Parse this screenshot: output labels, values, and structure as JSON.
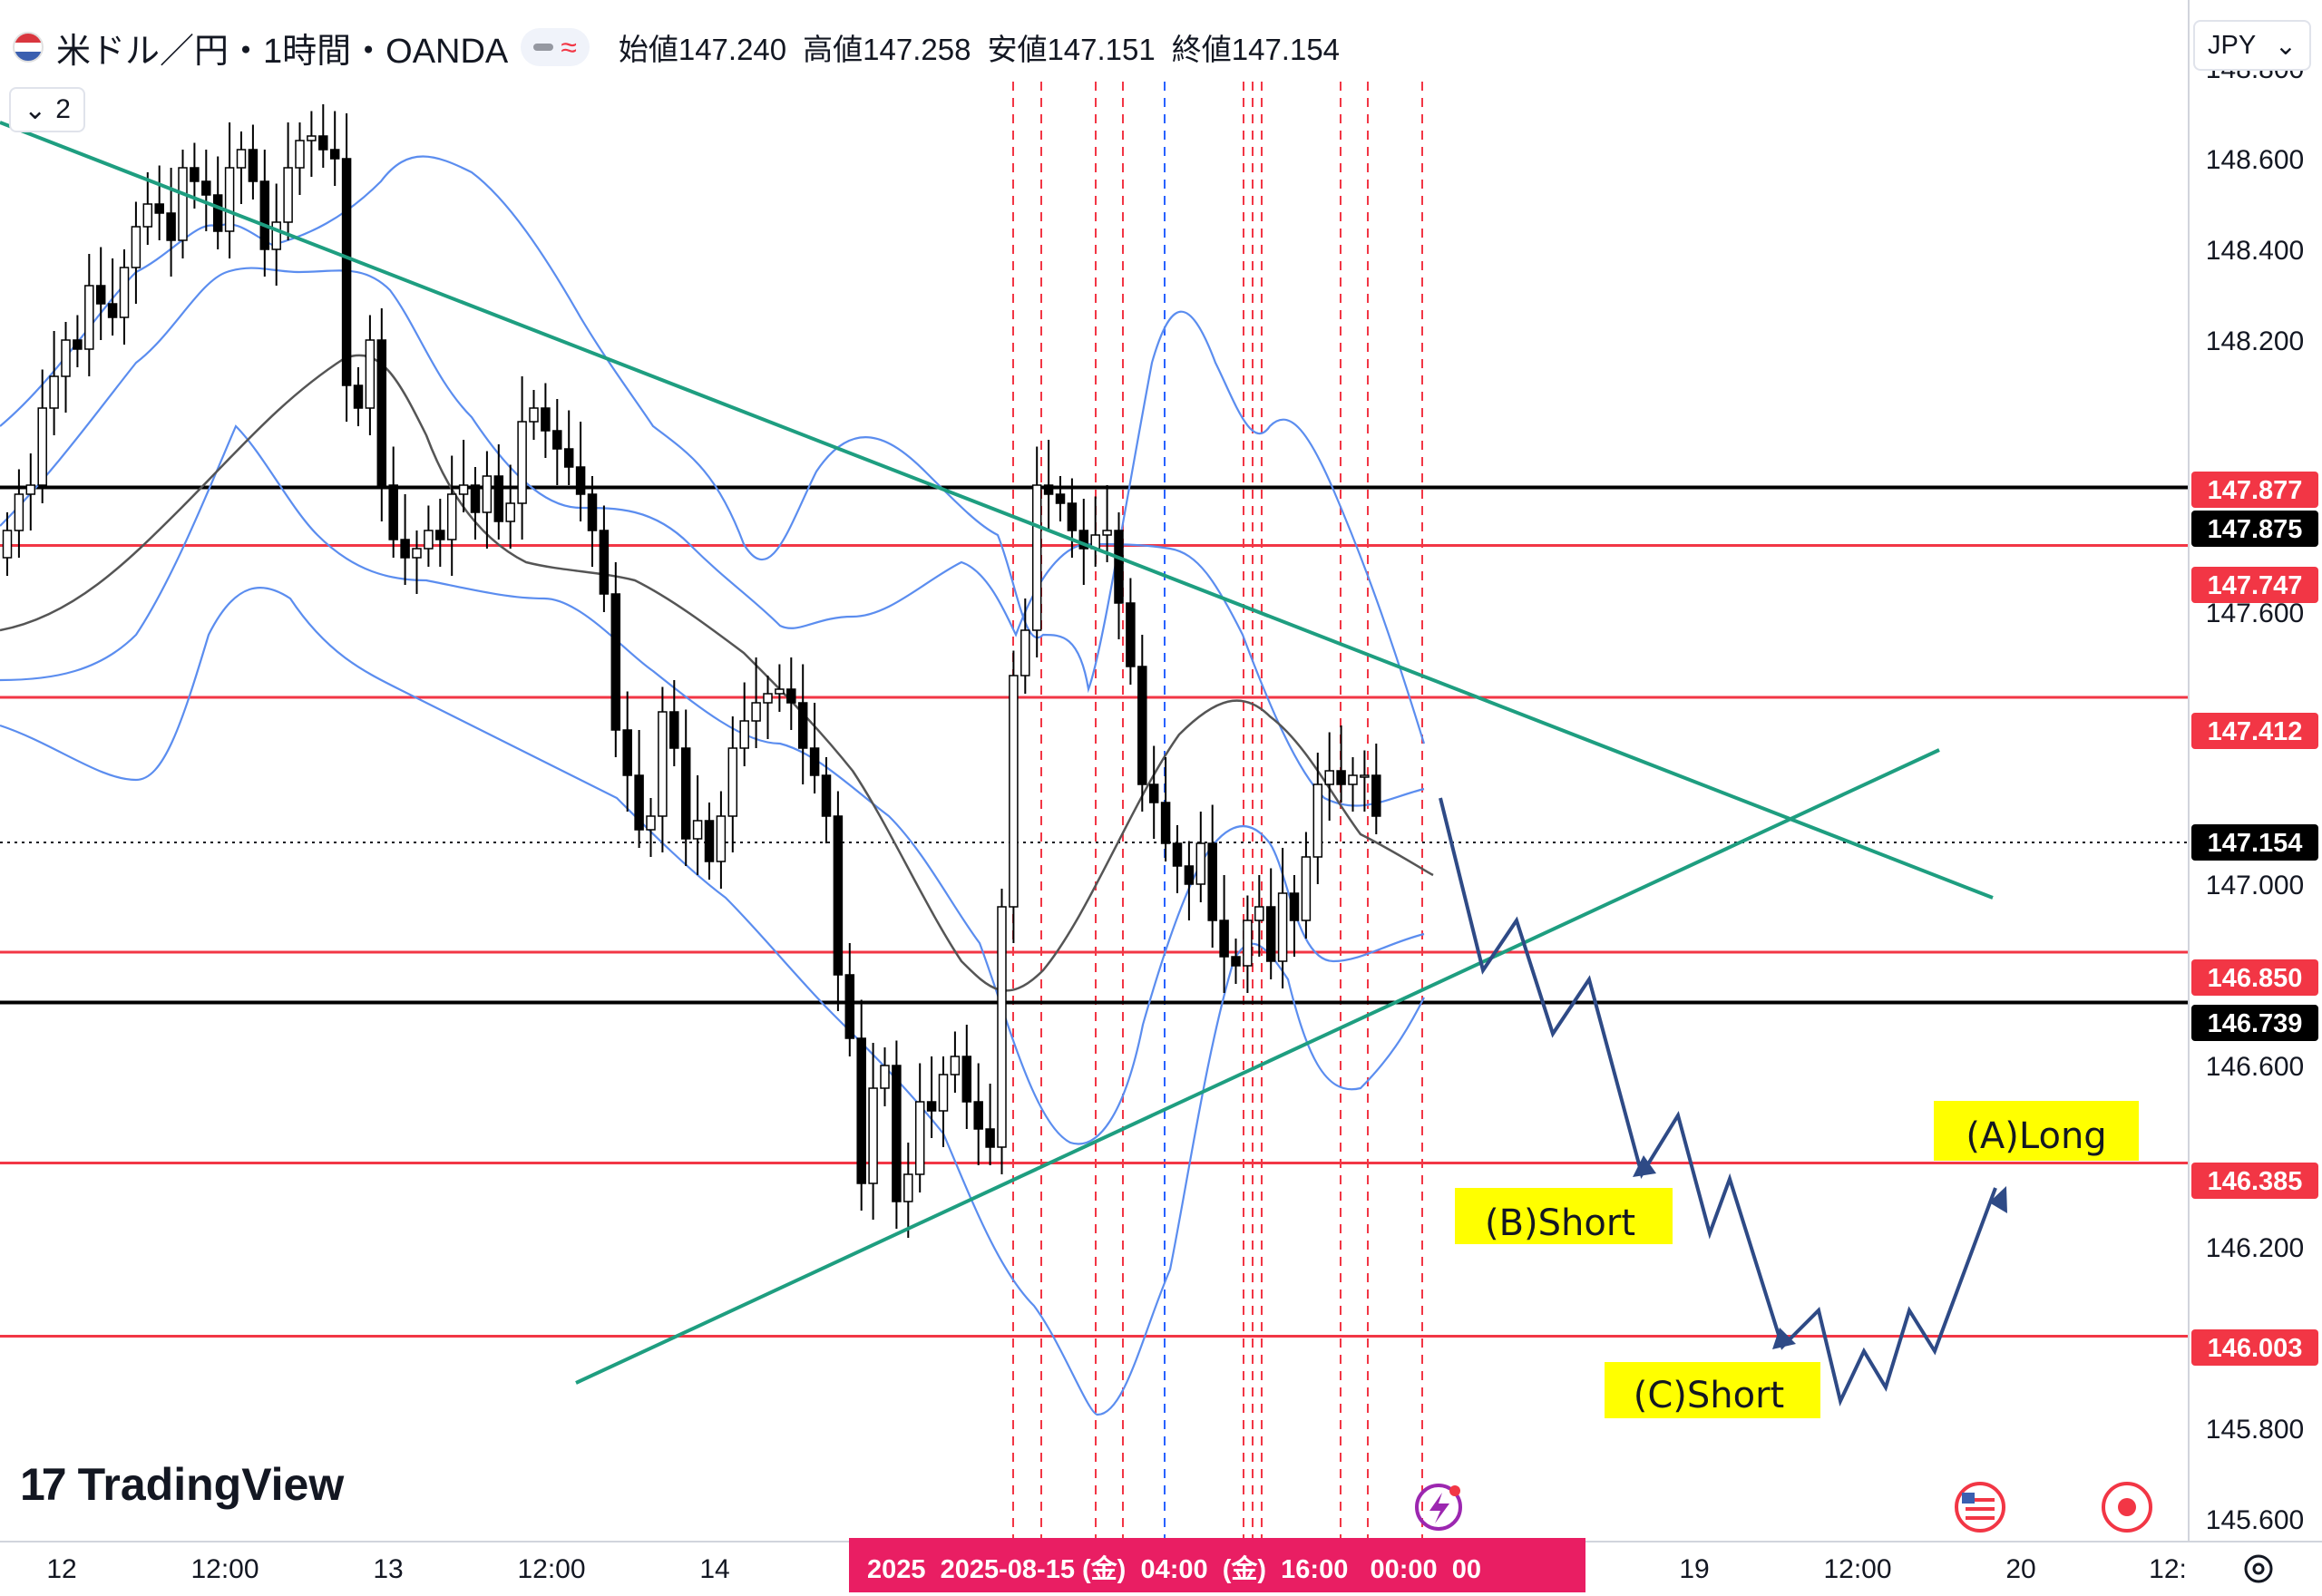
{
  "header": {
    "symbol": "米ドル／円・1時間・OANDA",
    "ohlc": [
      {
        "label": "始値",
        "value": "147.240"
      },
      {
        "label": "高値",
        "value": "147.258"
      },
      {
        "label": "安値",
        "value": "147.151"
      },
      {
        "label": "終値",
        "value": "147.154"
      }
    ],
    "collapse_label": "2",
    "currency": "JPY"
  },
  "brand": "TradingView",
  "colors": {
    "bull": "#ffffff",
    "bear": "#000000",
    "bollinger": "#5b8def",
    "sma": "#555555",
    "trendline": "#1e9e80",
    "level_red": "#f23645",
    "level_black": "#000000",
    "projection": "#2e4a86",
    "label_yellow": "#ffff00",
    "vline_red": "#f23645",
    "vline_blue": "#2962ff"
  },
  "chart_data": {
    "type": "candlestick",
    "symbol": "USDJPY",
    "timeframe": "1h",
    "y_axis": {
      "min": 145.55,
      "max": 148.95,
      "ticks": [
        "148.800",
        "148.600",
        "148.400",
        "148.200",
        "147.600",
        "147.000",
        "146.600",
        "146.200",
        "145.800",
        "145.600"
      ]
    },
    "x_axis": {
      "ticks": [
        "12",
        "12:00",
        "13",
        "12:00",
        "14",
        "19",
        "12:00",
        "20",
        "12:"
      ],
      "cursor_label": "2025  2025-08-15 (金)  04:00  (金)  16:00   00:00  00"
    },
    "price_labels": [
      {
        "value": "147.877",
        "style": "red"
      },
      {
        "value": "147.875",
        "style": "black"
      },
      {
        "value": "147.747",
        "style": "red"
      },
      {
        "value": "147.412",
        "style": "red"
      },
      {
        "value": "147.154",
        "style": "black"
      },
      {
        "value": "146.850",
        "style": "red"
      },
      {
        "value": "146.739",
        "style": "black"
      },
      {
        "value": "146.385",
        "style": "red"
      },
      {
        "value": "146.003",
        "style": "red"
      }
    ],
    "horizontal_levels": [
      {
        "price": 147.875,
        "color": "black"
      },
      {
        "price": 147.747,
        "color": "red"
      },
      {
        "price": 147.412,
        "color": "red"
      },
      {
        "price": 146.85,
        "color": "red"
      },
      {
        "price": 146.739,
        "color": "black"
      },
      {
        "price": 146.385,
        "color": "red"
      },
      {
        "price": 146.003,
        "color": "red"
      }
    ],
    "current_price": 147.154,
    "candles_close": [
      147.78,
      147.86,
      147.88,
      148.05,
      148.12,
      148.2,
      148.18,
      148.32,
      148.28,
      148.25,
      148.36,
      148.45,
      148.5,
      148.48,
      148.42,
      148.58,
      148.55,
      148.52,
      148.44,
      148.58,
      148.62,
      148.55,
      148.4,
      148.46,
      148.58,
      148.64,
      148.65,
      148.62,
      148.6,
      148.1,
      148.05,
      148.2,
      147.88,
      147.76,
      147.72,
      147.74,
      147.78,
      147.76,
      147.86,
      147.88,
      147.82,
      147.9,
      147.8,
      147.84,
      148.02,
      148.05,
      148.0,
      147.96,
      147.92,
      147.86,
      147.78,
      147.64,
      147.34,
      147.24,
      147.12,
      147.15,
      147.38,
      147.3,
      147.1,
      147.14,
      147.05,
      147.15,
      147.3,
      147.36,
      147.4,
      147.42,
      147.43,
      147.4,
      147.3,
      147.24,
      147.15,
      146.8,
      146.66,
      146.34,
      146.55,
      146.6,
      146.3,
      146.36,
      146.52,
      146.5,
      146.58,
      146.62,
      146.52,
      146.46,
      146.42,
      146.95,
      147.46,
      147.56,
      147.88,
      147.86,
      147.84,
      147.78,
      147.74,
      147.77,
      147.78,
      147.62,
      147.48,
      147.22,
      147.18,
      147.09,
      147.04,
      147.0,
      147.09,
      146.92,
      146.84,
      146.82,
      146.92,
      146.95,
      146.83,
      146.98,
      146.92,
      147.06,
      147.22,
      147.25,
      147.22,
      147.24,
      147.24,
      147.15
    ]
  },
  "drawings": {
    "labels": [
      "(A)Long",
      "(B)Short",
      "(C)Short"
    ]
  }
}
